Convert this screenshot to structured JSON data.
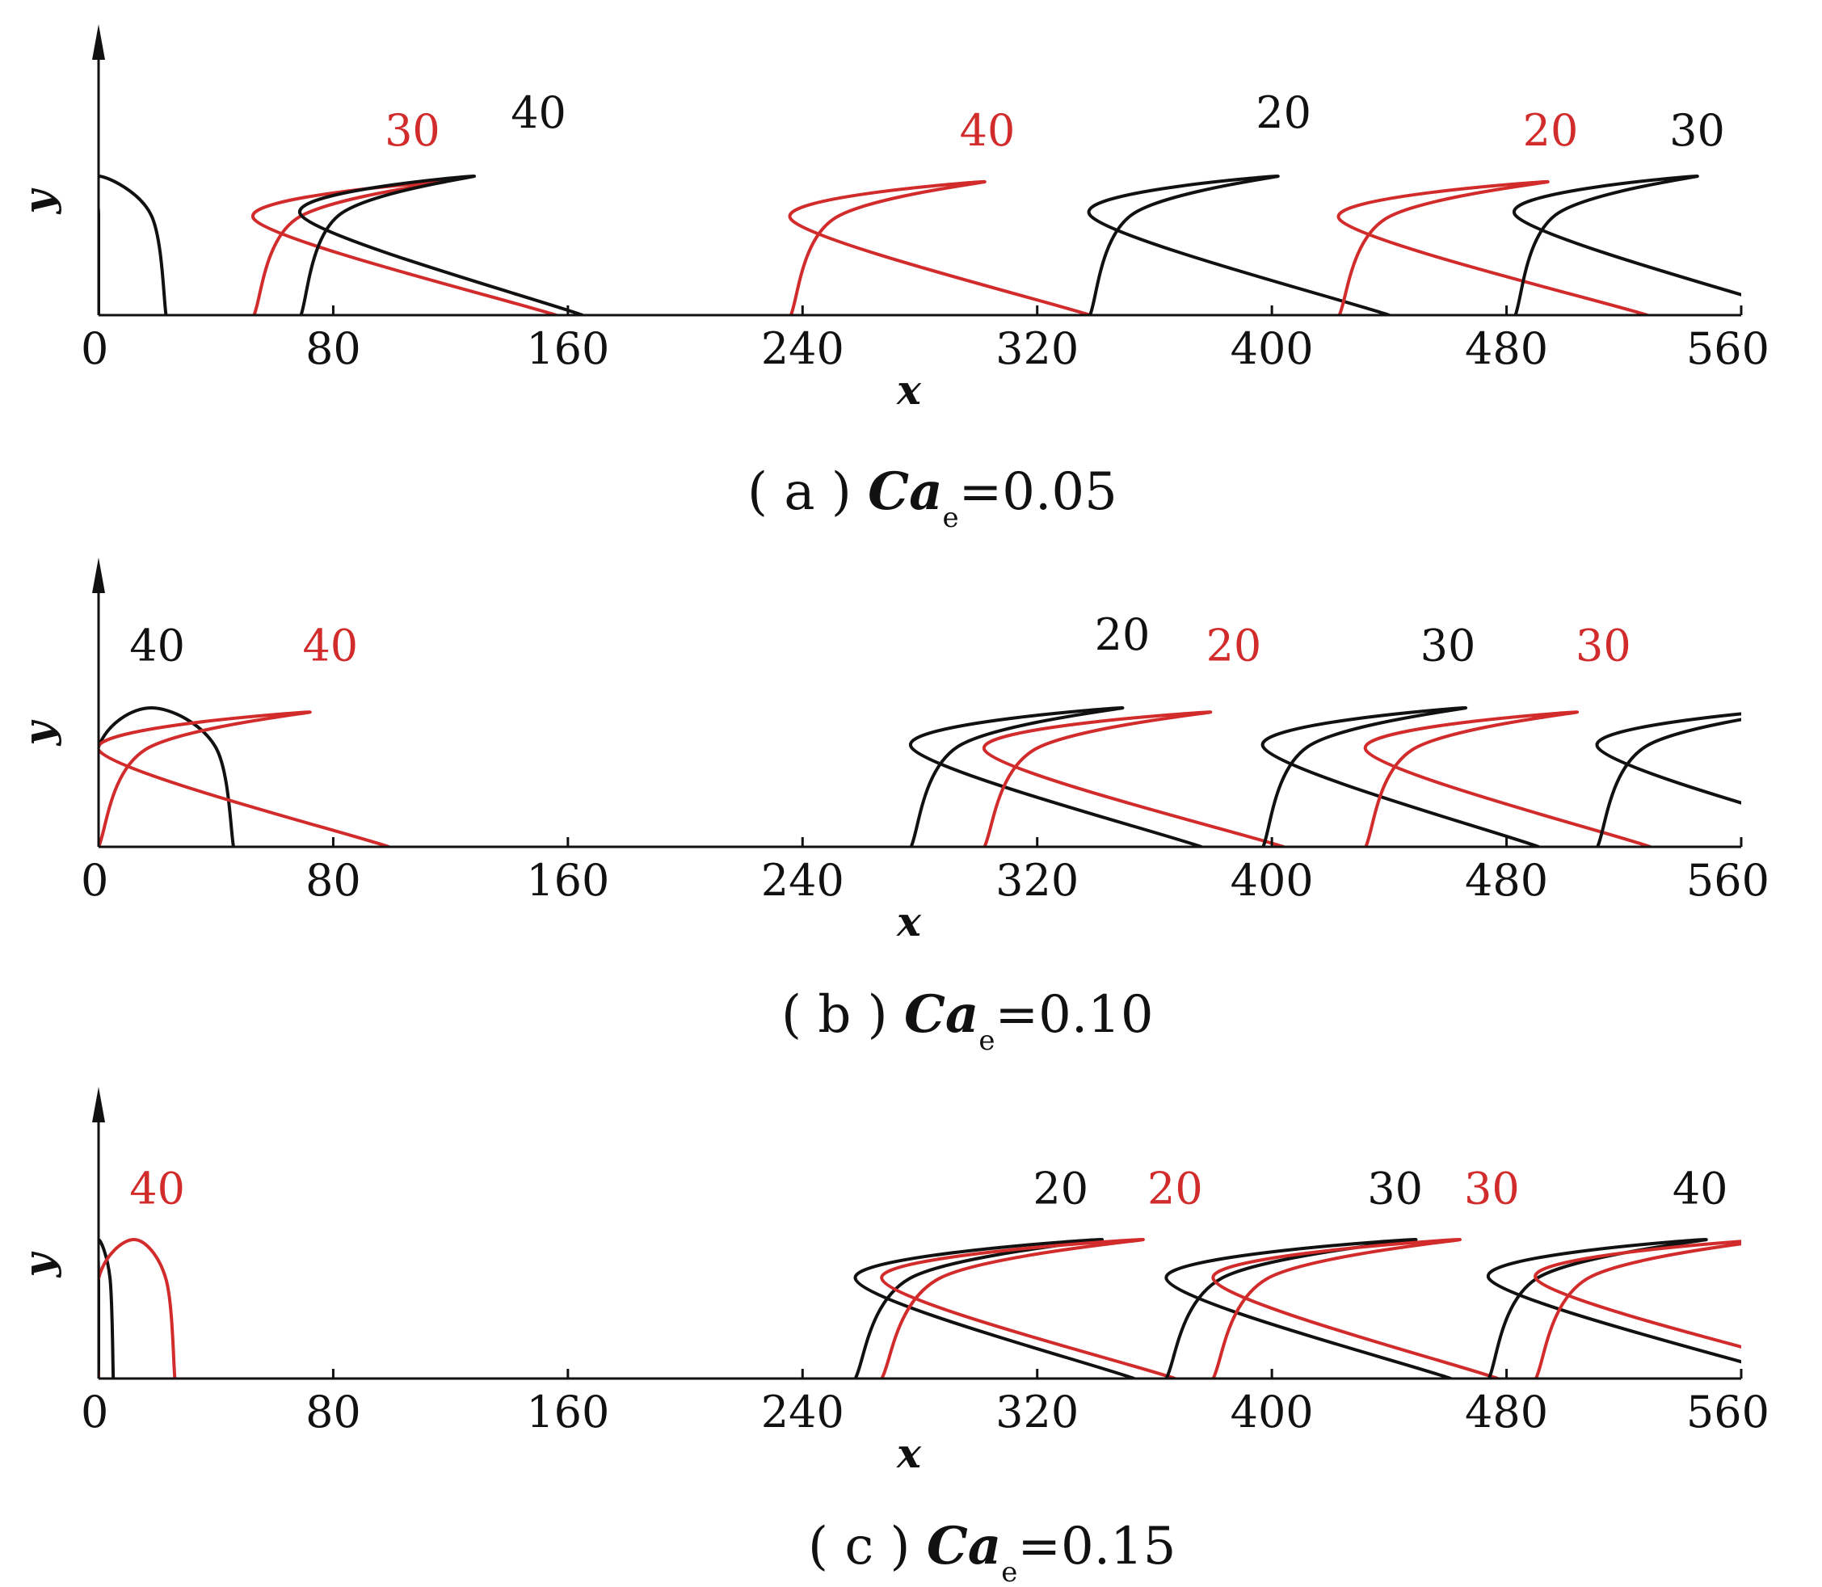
{
  "chart_data": [
    {
      "type": "line",
      "caption": {
        "prefix": "( a ) ",
        "symbol": "Ca",
        "subscript": "e",
        "suffix": "=0.05"
      },
      "xlabel": "x",
      "ylabel": "y",
      "xlim": [
        0,
        560
      ],
      "xticks": [
        "0",
        "80",
        "160",
        "240",
        "320",
        "400",
        "480",
        "560"
      ],
      "colors": {
        "black": "#111111",
        "red": "#d22b2b"
      },
      "series": [
        {
          "color": "black",
          "xs": 23,
          "xe": 0,
          "apex": 0,
          "xmin": 0,
          "ymax": 1.0
        },
        {
          "color": "red",
          "xs": 53,
          "xe": 156,
          "apex": 118,
          "xmin": 53,
          "ymax": 0.96
        },
        {
          "color": "black",
          "xs": 69,
          "xe": 165,
          "apex": 128,
          "xmin": 69,
          "ymax": 1.0
        },
        {
          "color": "red",
          "xs": 236,
          "xe": 338,
          "apex": 302,
          "xmin": 236,
          "ymax": 0.96
        },
        {
          "color": "black",
          "xs": 338,
          "xe": 440,
          "apex": 402,
          "xmin": 338,
          "ymax": 1.0
        },
        {
          "color": "red",
          "xs": 423,
          "xe": 528,
          "apex": 494,
          "xmin": 423,
          "ymax": 0.96
        },
        {
          "color": "black",
          "xs": 483,
          "xe": 583,
          "apex": 545,
          "xmin": 483,
          "ymax": 1.0
        }
      ],
      "annotations": [
        {
          "text": "30",
          "color": "red",
          "x": 107,
          "y": 1.22
        },
        {
          "text": "40",
          "color": "black",
          "x": 150,
          "y": 1.35
        },
        {
          "text": "40",
          "color": "red",
          "x": 303,
          "y": 1.22
        },
        {
          "text": "20",
          "color": "black",
          "x": 404,
          "y": 1.35
        },
        {
          "text": "20",
          "color": "red",
          "x": 495,
          "y": 1.22
        },
        {
          "text": "30",
          "color": "black",
          "x": 545,
          "y": 1.22
        }
      ]
    },
    {
      "type": "line",
      "caption": {
        "prefix": "( b ) ",
        "symbol": "Ca",
        "subscript": "e",
        "suffix": "=0.10"
      },
      "xlabel": "x",
      "ylabel": "y",
      "xlim": [
        0,
        560
      ],
      "xticks": [
        "0",
        "80",
        "160",
        "240",
        "320",
        "400",
        "480",
        "560"
      ],
      "colors": {
        "black": "#111111",
        "red": "#d22b2b"
      },
      "series": [
        {
          "color": "black",
          "xs": 46,
          "xe": 0,
          "apex": 18,
          "xmin": 0,
          "ymax": 1.0
        },
        {
          "color": "red",
          "xs": 0,
          "xe": 99,
          "apex": 72,
          "xmin": 0,
          "ymax": 0.97
        },
        {
          "color": "black",
          "xs": 277,
          "xe": 376,
          "apex": 349,
          "xmin": 277,
          "ymax": 1.0
        },
        {
          "color": "red",
          "xs": 302,
          "xe": 404,
          "apex": 379,
          "xmin": 302,
          "ymax": 0.97
        },
        {
          "color": "black",
          "xs": 397,
          "xe": 491,
          "apex": 466,
          "xmin": 397,
          "ymax": 1.0
        },
        {
          "color": "red",
          "xs": 432,
          "xe": 529,
          "apex": 504,
          "xmin": 432,
          "ymax": 0.97
        },
        {
          "color": "black",
          "xs": 511,
          "xe": 610,
          "apex": 585,
          "xmin": 511,
          "ymax": 1.0
        }
      ],
      "annotations": [
        {
          "text": "40",
          "color": "black",
          "x": 20,
          "y": 1.34
        },
        {
          "text": "40",
          "color": "red",
          "x": 79,
          "y": 1.34
        },
        {
          "text": "20",
          "color": "black",
          "x": 349,
          "y": 1.42
        },
        {
          "text": "20",
          "color": "red",
          "x": 387,
          "y": 1.34
        },
        {
          "text": "30",
          "color": "black",
          "x": 460,
          "y": 1.34
        },
        {
          "text": "30",
          "color": "red",
          "x": 513,
          "y": 1.34
        }
      ]
    },
    {
      "type": "line",
      "caption": {
        "prefix": "( c ) ",
        "symbol": "Ca",
        "subscript": "e",
        "suffix": "=0.15"
      },
      "xlabel": "x",
      "ylabel": "y",
      "xlim": [
        0,
        560
      ],
      "xticks": [
        "0",
        "80",
        "160",
        "240",
        "320",
        "400",
        "480",
        "560"
      ],
      "colors": {
        "black": "#111111",
        "red": "#d22b2b"
      },
      "series": [
        {
          "color": "black",
          "xs": 5,
          "xe": 0,
          "apex": 0,
          "xmin": 0,
          "ymax": 1.0
        },
        {
          "color": "red",
          "xs": 26,
          "xe": 0,
          "apex": 12,
          "xmin": 0,
          "ymax": 1.0
        },
        {
          "color": "black",
          "xs": 258,
          "xe": 353,
          "apex": 342,
          "xmin": 258,
          "ymax": 1.0
        },
        {
          "color": "red",
          "xs": 267,
          "xe": 367,
          "apex": 356,
          "xmin": 267,
          "ymax": 1.0
        },
        {
          "color": "black",
          "xs": 364,
          "xe": 461,
          "apex": 449,
          "xmin": 364,
          "ymax": 1.0
        },
        {
          "color": "red",
          "xs": 380,
          "xe": 477,
          "apex": 464,
          "xmin": 380,
          "ymax": 1.0
        },
        {
          "color": "black",
          "xs": 474,
          "xe": 580,
          "apex": 548,
          "xmin": 474,
          "ymax": 1.0
        },
        {
          "color": "red",
          "xs": 490,
          "xe": 600,
          "apex": 570,
          "xmin": 490,
          "ymax": 1.0
        }
      ],
      "annotations": [
        {
          "text": "40",
          "color": "red",
          "x": 20,
          "y": 1.26
        },
        {
          "text": "20",
          "color": "black",
          "x": 328,
          "y": 1.26
        },
        {
          "text": "20",
          "color": "red",
          "x": 367,
          "y": 1.26
        },
        {
          "text": "30",
          "color": "black",
          "x": 442,
          "y": 1.26
        },
        {
          "text": "30",
          "color": "red",
          "x": 475,
          "y": 1.26
        },
        {
          "text": "40",
          "color": "black",
          "x": 546,
          "y": 1.26
        }
      ]
    }
  ]
}
